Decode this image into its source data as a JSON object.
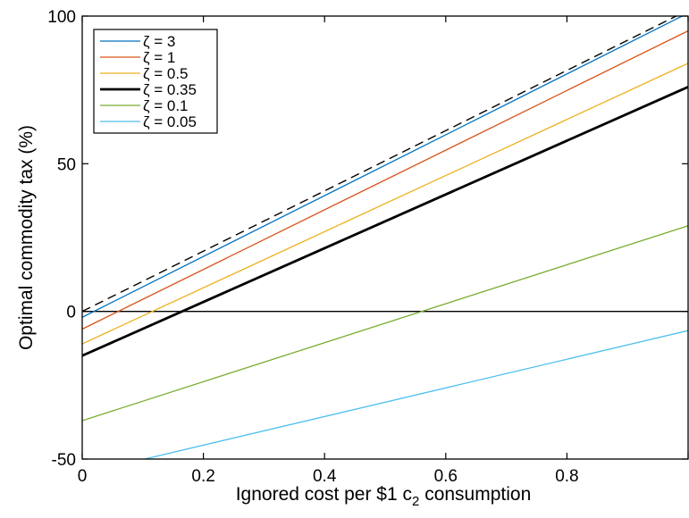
{
  "chart_data": {
    "type": "line",
    "title": "",
    "xlabel": "Ignored cost per $1 c₂ consumption",
    "xlabel_parts": {
      "pre": "Ignored cost per $1 c",
      "sub": "2",
      "post": " consumption"
    },
    "ylabel": "Optimal commodity tax (%)",
    "xlim": [
      0,
      1
    ],
    "ylim": [
      -50,
      100
    ],
    "xticks": [
      0,
      0.2,
      0.4,
      0.6,
      0.8,
      1
    ],
    "xtick_labels": [
      "0",
      "0.2",
      "0.4",
      "0.6",
      "0.8",
      ""
    ],
    "yticks": [
      -50,
      0,
      50,
      100
    ],
    "ytick_labels": [
      "-50",
      "0",
      "50",
      "100"
    ],
    "grid": false,
    "legend_position": "top-left",
    "zero_line": {
      "y": 0,
      "color": "#000000"
    },
    "reference_line": {
      "x": [
        0,
        1
      ],
      "y": [
        0,
        102
      ],
      "style": "dashed",
      "color": "#000000"
    },
    "series": [
      {
        "name": "ζ =    3",
        "color": "#0072BD",
        "width": 1.3,
        "x": [
          0,
          1
        ],
        "y": [
          -2,
          101
        ]
      },
      {
        "name": "ζ =    1",
        "color": "#D95319",
        "width": 1.3,
        "x": [
          0,
          1
        ],
        "y": [
          -6,
          95
        ]
      },
      {
        "name": "ζ =  0.5",
        "color": "#EDB120",
        "width": 1.3,
        "x": [
          0,
          1
        ],
        "y": [
          -11,
          84
        ]
      },
      {
        "name": "ζ = 0.35",
        "color": "#000000",
        "width": 2.8,
        "x": [
          0,
          1
        ],
        "y": [
          -15,
          76
        ]
      },
      {
        "name": "ζ =  0.1",
        "color": "#77AC30",
        "width": 1.3,
        "x": [
          0,
          1
        ],
        "y": [
          -37,
          29
        ]
      },
      {
        "name": "ζ = 0.05",
        "color": "#4DBEEE",
        "width": 1.3,
        "x": [
          0,
          1
        ],
        "y": [
          -55,
          -6.5
        ]
      }
    ]
  }
}
